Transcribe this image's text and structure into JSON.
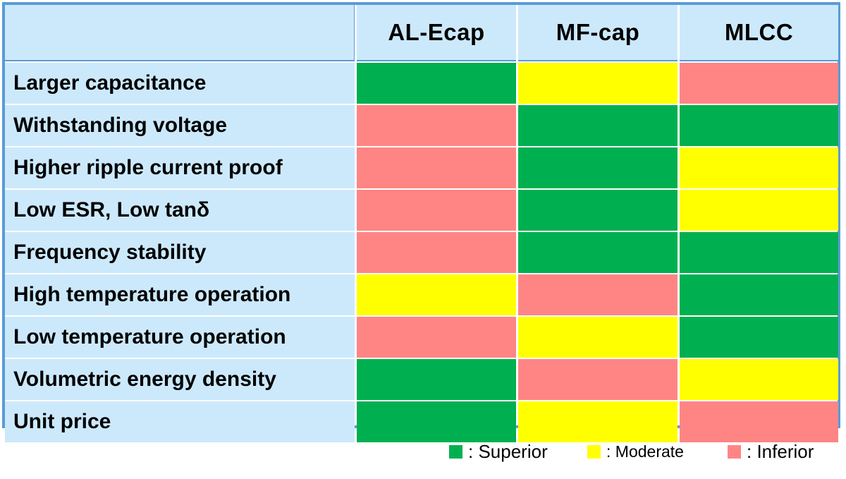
{
  "chart_data": {
    "type": "table",
    "title": "",
    "columns": [
      "AL-Ecap",
      "MF-cap",
      "MLCC"
    ],
    "rows": [
      {
        "label": "Larger capacitance",
        "ratings": [
          "superior",
          "moderate",
          "inferior"
        ]
      },
      {
        "label": "Withstanding voltage",
        "ratings": [
          "inferior",
          "superior",
          "superior"
        ]
      },
      {
        "label": "Higher ripple current proof",
        "ratings": [
          "inferior",
          "superior",
          "moderate"
        ]
      },
      {
        "label": "Low ESR, Low tanδ",
        "ratings": [
          "inferior",
          "superior",
          "moderate"
        ]
      },
      {
        "label": "Frequency stability",
        "ratings": [
          "inferior",
          "superior",
          "superior"
        ]
      },
      {
        "label": "High temperature operation",
        "ratings": [
          "moderate",
          "inferior",
          "superior"
        ]
      },
      {
        "label": "Low temperature operation",
        "ratings": [
          "inferior",
          "moderate",
          "superior"
        ]
      },
      {
        "label": "Volumetric energy density",
        "ratings": [
          "superior",
          "inferior",
          "moderate"
        ]
      },
      {
        "label": "Unit price",
        "ratings": [
          "superior",
          "moderate",
          "inferior"
        ]
      }
    ],
    "legend": [
      {
        "key": "superior",
        "label": ": Superior"
      },
      {
        "key": "moderate",
        "label": ": Moderate"
      },
      {
        "key": "inferior",
        "label": ": Inferior"
      }
    ]
  },
  "colors": {
    "superior": "#00b050",
    "moderate": "#ffff00",
    "inferior": "#ff8585",
    "header_bg": "#cce9fc",
    "border": "#5b9bd5"
  }
}
